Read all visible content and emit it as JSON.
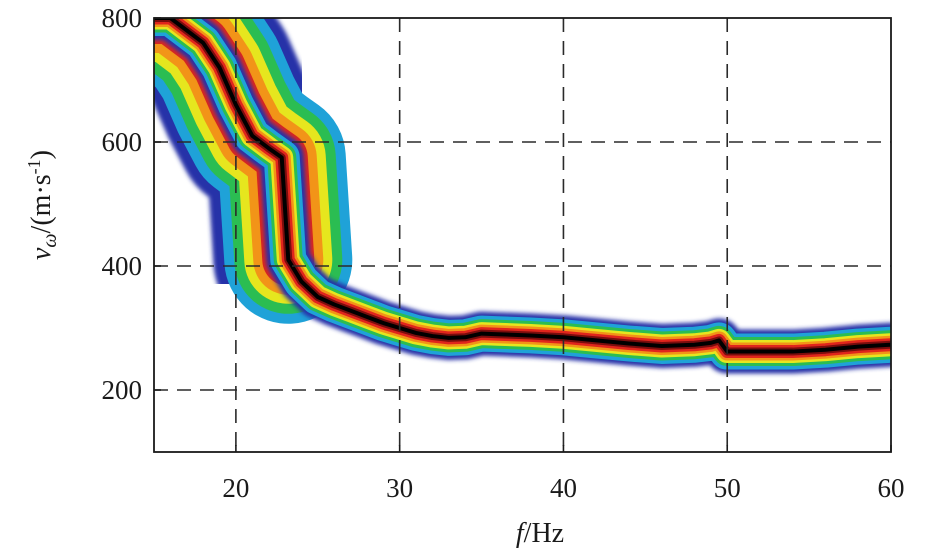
{
  "chart_data": {
    "type": "heatmap",
    "title": "",
    "xlabel": "f/Hz",
    "xlabel_italic": "f",
    "xlabel_unit": "/Hz",
    "ylabel": "vω/(m·s-1)",
    "ylabel_var": "v",
    "ylabel_sub": "ω",
    "ylabel_unit_pre": "/(m·s",
    "ylabel_unit_sup": "-1",
    "ylabel_unit_post": ")",
    "xlim": [
      15,
      60
    ],
    "ylim": [
      100,
      800
    ],
    "xticks": [
      "20",
      "30",
      "40",
      "50",
      "60"
    ],
    "xtick_values": [
      20,
      30,
      40,
      50,
      60
    ],
    "yticks": [
      "200",
      "400",
      "600",
      "800"
    ],
    "ytick_values": [
      200,
      400,
      600,
      800
    ],
    "grid": true,
    "grid_style": "dashed",
    "colormap": [
      "#2833a8",
      "#1fa2d8",
      "#2bbd52",
      "#e6e61e",
      "#f29418",
      "#e0251c",
      "#7a0d0d",
      "#000000"
    ],
    "ridge": {
      "name": "",
      "x": [
        15,
        16,
        17,
        18,
        19,
        20,
        21,
        22,
        22.8,
        23.2,
        24,
        25,
        26,
        27,
        28,
        29,
        30,
        31,
        32,
        33,
        34,
        35,
        36,
        38,
        40,
        42,
        44,
        46,
        48,
        49,
        49.5,
        50,
        52,
        54,
        56,
        58,
        60
      ],
      "y": [
        800,
        800,
        780,
        760,
        720,
        660,
        610,
        590,
        575,
        410,
        375,
        350,
        338,
        328,
        318,
        308,
        300,
        292,
        287,
        284,
        285,
        291,
        290,
        288,
        285,
        280,
        275,
        271,
        273,
        276,
        280,
        262,
        262,
        262,
        265,
        270,
        273
      ]
    }
  }
}
